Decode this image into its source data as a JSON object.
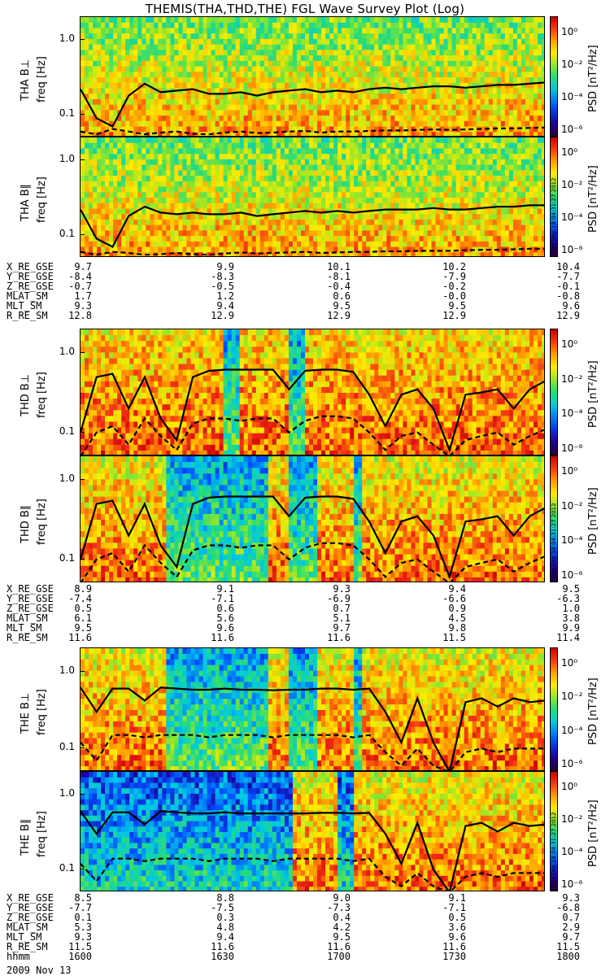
{
  "title": "THEMIS(THA,THD,THE) FGL Wave Survey Plot (Log)",
  "stamp": "Sun Sep 18 04:31:27 2012",
  "colorbar": {
    "title": "PSD [nT²/Hz]",
    "labels": [
      "10⁰",
      "10⁻²",
      "10⁻⁴",
      "10⁻⁶"
    ]
  },
  "date_label": "2009 Nov 13",
  "chart_data": [
    {
      "type": "heatmap",
      "ylabel": "THA B⊥",
      "yunit": "freq [Hz]",
      "yscale": "log",
      "yticks": [
        "1.0",
        "0.1"
      ],
      "ylim": [
        0.05,
        2.0
      ],
      "activity": "moderate",
      "solid_line_hz": [
        0.22,
        0.09,
        0.07,
        0.18,
        0.26,
        0.2,
        0.21,
        0.22,
        0.19,
        0.19,
        0.2,
        0.18,
        0.2,
        0.21,
        0.22,
        0.2,
        0.21,
        0.2,
        0.22,
        0.23,
        0.22,
        0.23,
        0.24,
        0.24,
        0.23,
        0.24,
        0.25,
        0.25,
        0.26,
        0.27
      ],
      "dashed_line_hz": [
        0.06,
        0.055,
        0.065,
        0.06,
        0.055,
        0.058,
        0.06,
        0.056,
        0.055,
        0.058,
        0.06,
        0.057,
        0.058,
        0.06,
        0.061,
        0.058,
        0.06,
        0.06,
        0.061,
        0.062,
        0.062,
        0.063,
        0.064,
        0.063,
        0.064,
        0.065,
        0.066,
        0.066,
        0.067,
        0.068
      ]
    },
    {
      "type": "heatmap",
      "ylabel": "THA B∥",
      "yunit": "freq [Hz]",
      "yscale": "log",
      "yticks": [
        "1.0",
        "0.1"
      ],
      "ylim": [
        0.05,
        2.0
      ],
      "activity": "moderate",
      "solid_line_hz": [
        0.22,
        0.09,
        0.07,
        0.18,
        0.24,
        0.2,
        0.19,
        0.2,
        0.19,
        0.19,
        0.2,
        0.18,
        0.19,
        0.2,
        0.21,
        0.2,
        0.21,
        0.2,
        0.21,
        0.22,
        0.22,
        0.22,
        0.23,
        0.22,
        0.22,
        0.23,
        0.24,
        0.24,
        0.25,
        0.25
      ],
      "dashed_line_hz": [
        0.06,
        0.055,
        0.06,
        0.058,
        0.055,
        0.056,
        0.058,
        0.056,
        0.055,
        0.057,
        0.059,
        0.057,
        0.058,
        0.059,
        0.06,
        0.058,
        0.059,
        0.06,
        0.06,
        0.061,
        0.061,
        0.062,
        0.062,
        0.062,
        0.063,
        0.064,
        0.064,
        0.065,
        0.066,
        0.066
      ]
    },
    {
      "type": "heatmap",
      "ylabel": "THD B⊥",
      "yunit": "freq [Hz]",
      "yscale": "log",
      "yticks": [
        "1.0",
        "0.1"
      ],
      "ylim": [
        0.05,
        2.0
      ],
      "activity": "high",
      "solid_line_hz": [
        0.1,
        0.5,
        0.55,
        0.2,
        0.5,
        0.15,
        0.08,
        0.5,
        0.6,
        0.62,
        0.62,
        0.62,
        0.62,
        0.35,
        0.6,
        0.62,
        0.62,
        0.58,
        0.3,
        0.12,
        0.3,
        0.35,
        0.2,
        0.06,
        0.3,
        0.32,
        0.35,
        0.2,
        0.35,
        0.45
      ],
      "dashed_line_hz": [
        0.05,
        0.1,
        0.12,
        0.07,
        0.15,
        0.09,
        0.06,
        0.13,
        0.15,
        0.15,
        0.14,
        0.15,
        0.15,
        0.1,
        0.14,
        0.16,
        0.16,
        0.15,
        0.1,
        0.06,
        0.09,
        0.1,
        0.07,
        0.05,
        0.08,
        0.09,
        0.1,
        0.07,
        0.09,
        0.11
      ]
    },
    {
      "type": "heatmap",
      "ylabel": "THD B∥",
      "yunit": "freq [Hz]",
      "yscale": "log",
      "yticks": [
        "1.0",
        "0.1"
      ],
      "ylim": [
        0.05,
        2.0
      ],
      "activity": "mixed",
      "solid_line_hz": [
        0.1,
        0.5,
        0.55,
        0.2,
        0.5,
        0.15,
        0.08,
        0.5,
        0.6,
        0.62,
        0.62,
        0.62,
        0.62,
        0.35,
        0.6,
        0.62,
        0.62,
        0.58,
        0.3,
        0.12,
        0.3,
        0.35,
        0.2,
        0.06,
        0.3,
        0.32,
        0.35,
        0.2,
        0.35,
        0.45
      ],
      "dashed_line_hz": [
        0.05,
        0.1,
        0.12,
        0.07,
        0.15,
        0.09,
        0.06,
        0.13,
        0.15,
        0.15,
        0.14,
        0.15,
        0.15,
        0.1,
        0.14,
        0.16,
        0.16,
        0.15,
        0.1,
        0.06,
        0.09,
        0.1,
        0.07,
        0.05,
        0.08,
        0.09,
        0.1,
        0.07,
        0.09,
        0.11
      ]
    },
    {
      "type": "heatmap",
      "ylabel": "THE B⊥",
      "yunit": "freq [Hz]",
      "yscale": "log",
      "yticks": [
        "1.0",
        "0.1"
      ],
      "ylim": [
        0.05,
        2.0
      ],
      "activity": "mixed",
      "solid_line_hz": [
        0.62,
        0.3,
        0.6,
        0.6,
        0.42,
        0.62,
        0.6,
        0.58,
        0.58,
        0.6,
        0.58,
        0.58,
        0.57,
        0.58,
        0.58,
        0.6,
        0.6,
        0.58,
        0.6,
        0.3,
        0.12,
        0.45,
        0.12,
        0.05,
        0.4,
        0.45,
        0.35,
        0.45,
        0.4,
        0.42
      ],
      "dashed_line_hz": [
        0.12,
        0.07,
        0.15,
        0.15,
        0.14,
        0.15,
        0.15,
        0.15,
        0.14,
        0.15,
        0.15,
        0.15,
        0.14,
        0.15,
        0.15,
        0.15,
        0.15,
        0.14,
        0.15,
        0.09,
        0.06,
        0.1,
        0.06,
        0.05,
        0.09,
        0.1,
        0.09,
        0.1,
        0.1,
        0.1
      ]
    },
    {
      "type": "heatmap",
      "ylabel": "THE B∥",
      "yunit": "freq [Hz]",
      "yscale": "log",
      "yticks": [
        "1.0",
        "0.1"
      ],
      "ylim": [
        0.05,
        2.0
      ],
      "activity": "quiet",
      "solid_line_hz": [
        0.6,
        0.3,
        0.58,
        0.58,
        0.4,
        0.6,
        0.58,
        0.56,
        0.56,
        0.58,
        0.56,
        0.56,
        0.56,
        0.56,
        0.56,
        0.57,
        0.57,
        0.56,
        0.57,
        0.3,
        0.12,
        0.42,
        0.1,
        0.05,
        0.38,
        0.42,
        0.32,
        0.42,
        0.38,
        0.4
      ],
      "dashed_line_hz": [
        0.12,
        0.07,
        0.14,
        0.14,
        0.13,
        0.14,
        0.14,
        0.14,
        0.13,
        0.14,
        0.14,
        0.14,
        0.13,
        0.14,
        0.14,
        0.14,
        0.14,
        0.13,
        0.14,
        0.08,
        0.06,
        0.09,
        0.06,
        0.05,
        0.08,
        0.09,
        0.08,
        0.09,
        0.09,
        0.09
      ]
    }
  ],
  "ephemeris": [
    {
      "names": [
        "X_RE_GSE",
        "Y_RE_GSE",
        "Z_RE_GSE",
        "MLAT_SM",
        "MLT_SM",
        "R_RE_SM"
      ],
      "values": [
        [
          "9.7",
          "9.9",
          "10.1",
          "10.2",
          "10.4"
        ],
        [
          "-8.4",
          "-8.3",
          "-8.1",
          "-7.9",
          "-7.7"
        ],
        [
          "-0.7",
          "-0.5",
          "-0.4",
          "-0.2",
          "-0.1"
        ],
        [
          "1.7",
          "1.2",
          "0.6",
          "-0.0",
          "-0.8"
        ],
        [
          "9.3",
          "9.4",
          "9.5",
          "9.5",
          "9.6"
        ],
        [
          "12.8",
          "12.9",
          "12.9",
          "12.9",
          "12.9"
        ]
      ]
    },
    {
      "names": [
        "X_RE_GSE",
        "Y_RE_GSE",
        "Z_RE_GSE",
        "MLAT_SM",
        "MLT_SM",
        "R_RE_SM"
      ],
      "values": [
        [
          "8.9",
          "9.1",
          "9.3",
          "9.4",
          "9.5"
        ],
        [
          "-7.4",
          "-7.1",
          "-6.9",
          "-6.6",
          "-6.3"
        ],
        [
          "0.5",
          "0.6",
          "0.7",
          "0.9",
          "1.0"
        ],
        [
          "6.1",
          "5.6",
          "5.1",
          "4.5",
          "3.8"
        ],
        [
          "9.5",
          "9.6",
          "9.7",
          "9.8",
          "9.9"
        ],
        [
          "11.6",
          "11.6",
          "11.6",
          "11.5",
          "11.4"
        ]
      ]
    },
    {
      "names": [
        "X_RE_GSE",
        "Y_RE_GSE",
        "Z_RE_GSE",
        "MLAT_SM",
        "MLT_SM",
        "R_RE_SM",
        "hhmm"
      ],
      "values": [
        [
          "8.5",
          "8.8",
          "9.0",
          "9.1",
          "9.3"
        ],
        [
          "-7.7",
          "-7.5",
          "-7.3",
          "-7.1",
          "-6.8"
        ],
        [
          "0.1",
          "0.3",
          "0.4",
          "0.5",
          "0.7"
        ],
        [
          "5.3",
          "4.8",
          "4.2",
          "3.6",
          "2.9"
        ],
        [
          "9.3",
          "9.4",
          "9.5",
          "9.6",
          "9.7"
        ],
        [
          "11.5",
          "11.6",
          "11.6",
          "11.6",
          "11.5"
        ],
        [
          "1600",
          "1630",
          "1700",
          "1730",
          "1800"
        ]
      ]
    }
  ]
}
